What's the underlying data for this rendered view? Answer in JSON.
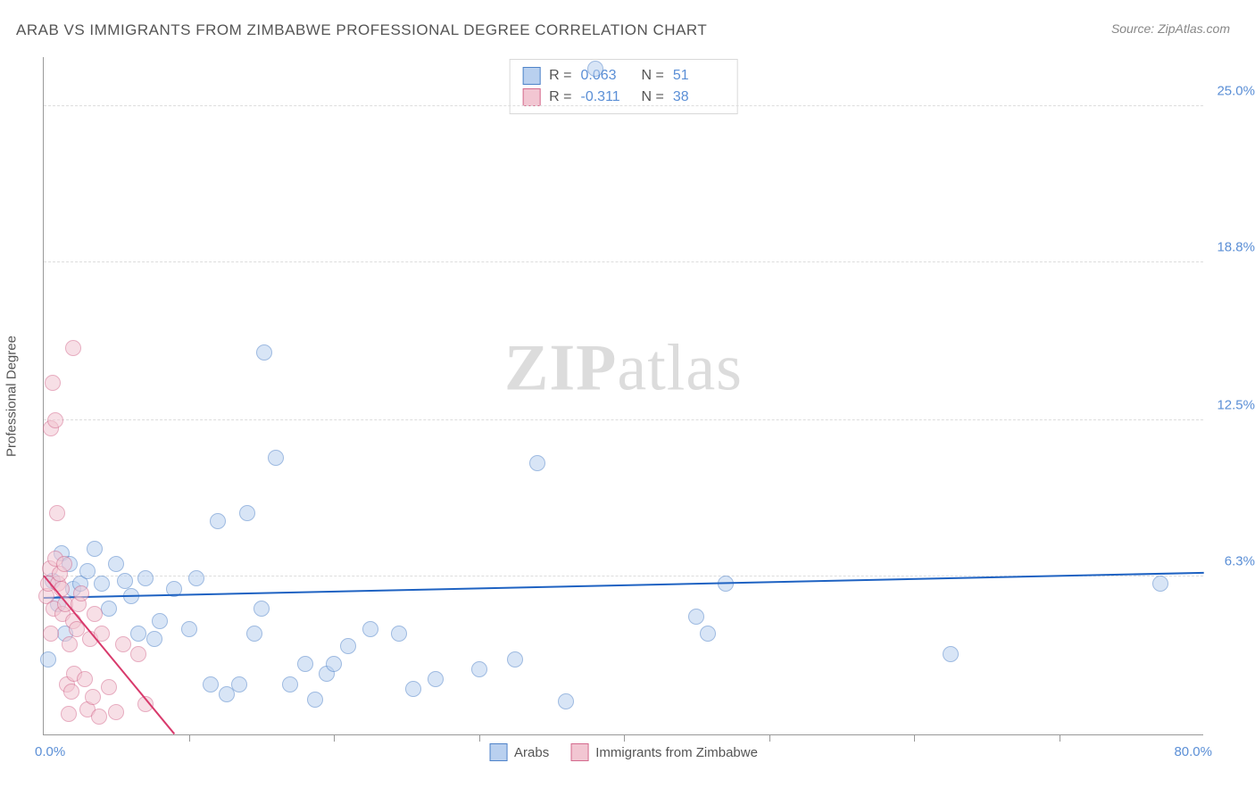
{
  "title": "ARAB VS IMMIGRANTS FROM ZIMBABWE PROFESSIONAL DEGREE CORRELATION CHART",
  "source_label": "Source: ZipAtlas.com",
  "watermark_prefix": "ZIP",
  "watermark_suffix": "atlas",
  "y_axis_label": "Professional Degree",
  "x_origin_label": "0.0%",
  "x_max_label": "80.0%",
  "chart": {
    "type": "scatter",
    "xlim": [
      0,
      80
    ],
    "ylim": [
      0,
      27
    ],
    "background_color": "#ffffff",
    "grid_color": "#dddddd",
    "y_ticks": [
      {
        "value": 6.3,
        "label": "6.3%"
      },
      {
        "value": 12.5,
        "label": "12.5%"
      },
      {
        "value": 18.8,
        "label": "18.8%"
      },
      {
        "value": 25.0,
        "label": "25.0%"
      }
    ],
    "x_major_ticks": [
      10,
      20,
      30,
      40,
      50,
      60,
      70
    ],
    "series": [
      {
        "name": "Arabs",
        "fill": "#b9d0ef",
        "stroke": "#4f83c9",
        "marker_radius": 9,
        "fill_opacity": 0.55,
        "stats": {
          "R_label": "R =",
          "R": "0.063",
          "N_label": "N =",
          "N": "51"
        },
        "trend": {
          "x1": 0,
          "y1": 5.4,
          "x2": 80,
          "y2": 6.4,
          "color": "#1e62c2",
          "width": 2
        },
        "points": [
          [
            0.3,
            3.0
          ],
          [
            0.6,
            6.1
          ],
          [
            1.0,
            5.2
          ],
          [
            1.2,
            7.2
          ],
          [
            1.5,
            4.0
          ],
          [
            1.8,
            6.8
          ],
          [
            2.0,
            5.8
          ],
          [
            2.5,
            6.0
          ],
          [
            3.0,
            6.5
          ],
          [
            3.5,
            7.4
          ],
          [
            4.0,
            6.0
          ],
          [
            4.5,
            5.0
          ],
          [
            5.0,
            6.8
          ],
          [
            5.6,
            6.1
          ],
          [
            6.0,
            5.5
          ],
          [
            6.5,
            4.0
          ],
          [
            7.0,
            6.2
          ],
          [
            7.6,
            3.8
          ],
          [
            8.0,
            4.5
          ],
          [
            9.0,
            5.8
          ],
          [
            10.0,
            4.2
          ],
          [
            10.5,
            6.2
          ],
          [
            11.5,
            2.0
          ],
          [
            12.0,
            8.5
          ],
          [
            12.6,
            1.6
          ],
          [
            13.5,
            2.0
          ],
          [
            14.0,
            8.8
          ],
          [
            14.5,
            4.0
          ],
          [
            15.0,
            5.0
          ],
          [
            15.2,
            15.2
          ],
          [
            16.0,
            11.0
          ],
          [
            17.0,
            2.0
          ],
          [
            18.0,
            2.8
          ],
          [
            18.7,
            1.4
          ],
          [
            19.5,
            2.4
          ],
          [
            20.0,
            2.8
          ],
          [
            21.0,
            3.5
          ],
          [
            22.5,
            4.2
          ],
          [
            24.5,
            4.0
          ],
          [
            25.5,
            1.8
          ],
          [
            27.0,
            2.2
          ],
          [
            30.0,
            2.6
          ],
          [
            32.5,
            3.0
          ],
          [
            34.0,
            10.8
          ],
          [
            36.0,
            1.3
          ],
          [
            38.0,
            26.5
          ],
          [
            45.0,
            4.7
          ],
          [
            45.8,
            4.0
          ],
          [
            47.0,
            6.0
          ],
          [
            62.5,
            3.2
          ],
          [
            77.0,
            6.0
          ]
        ]
      },
      {
        "name": "Immigrants from Zimbabwe",
        "fill": "#f2c6d2",
        "stroke": "#d46a8d",
        "marker_radius": 9,
        "fill_opacity": 0.55,
        "stats": {
          "R_label": "R =",
          "R": "-0.311",
          "N_label": "N =",
          "N": "38"
        },
        "trend": {
          "x1": 0,
          "y1": 6.3,
          "x2": 9,
          "y2": 0,
          "color": "#d83a6c",
          "width": 2
        },
        "points": [
          [
            0.2,
            5.5
          ],
          [
            0.3,
            6.0
          ],
          [
            0.4,
            6.6
          ],
          [
            0.5,
            4.0
          ],
          [
            0.5,
            12.2
          ],
          [
            0.6,
            14.0
          ],
          [
            0.7,
            5.0
          ],
          [
            0.8,
            7.0
          ],
          [
            0.8,
            12.5
          ],
          [
            0.9,
            8.8
          ],
          [
            1.0,
            6.0
          ],
          [
            1.1,
            6.4
          ],
          [
            1.2,
            5.8
          ],
          [
            1.3,
            4.8
          ],
          [
            1.4,
            6.8
          ],
          [
            1.5,
            5.2
          ],
          [
            1.6,
            2.0
          ],
          [
            1.7,
            0.8
          ],
          [
            1.8,
            3.6
          ],
          [
            1.9,
            1.7
          ],
          [
            2.0,
            4.5
          ],
          [
            2.0,
            15.4
          ],
          [
            2.1,
            2.4
          ],
          [
            2.3,
            4.2
          ],
          [
            2.4,
            5.2
          ],
          [
            2.6,
            5.6
          ],
          [
            2.8,
            2.2
          ],
          [
            3.0,
            1.0
          ],
          [
            3.2,
            3.8
          ],
          [
            3.4,
            1.5
          ],
          [
            3.5,
            4.8
          ],
          [
            3.8,
            0.7
          ],
          [
            4.0,
            4.0
          ],
          [
            4.5,
            1.9
          ],
          [
            5.0,
            0.9
          ],
          [
            5.5,
            3.6
          ],
          [
            6.5,
            3.2
          ],
          [
            7.0,
            1.2
          ]
        ]
      }
    ]
  }
}
